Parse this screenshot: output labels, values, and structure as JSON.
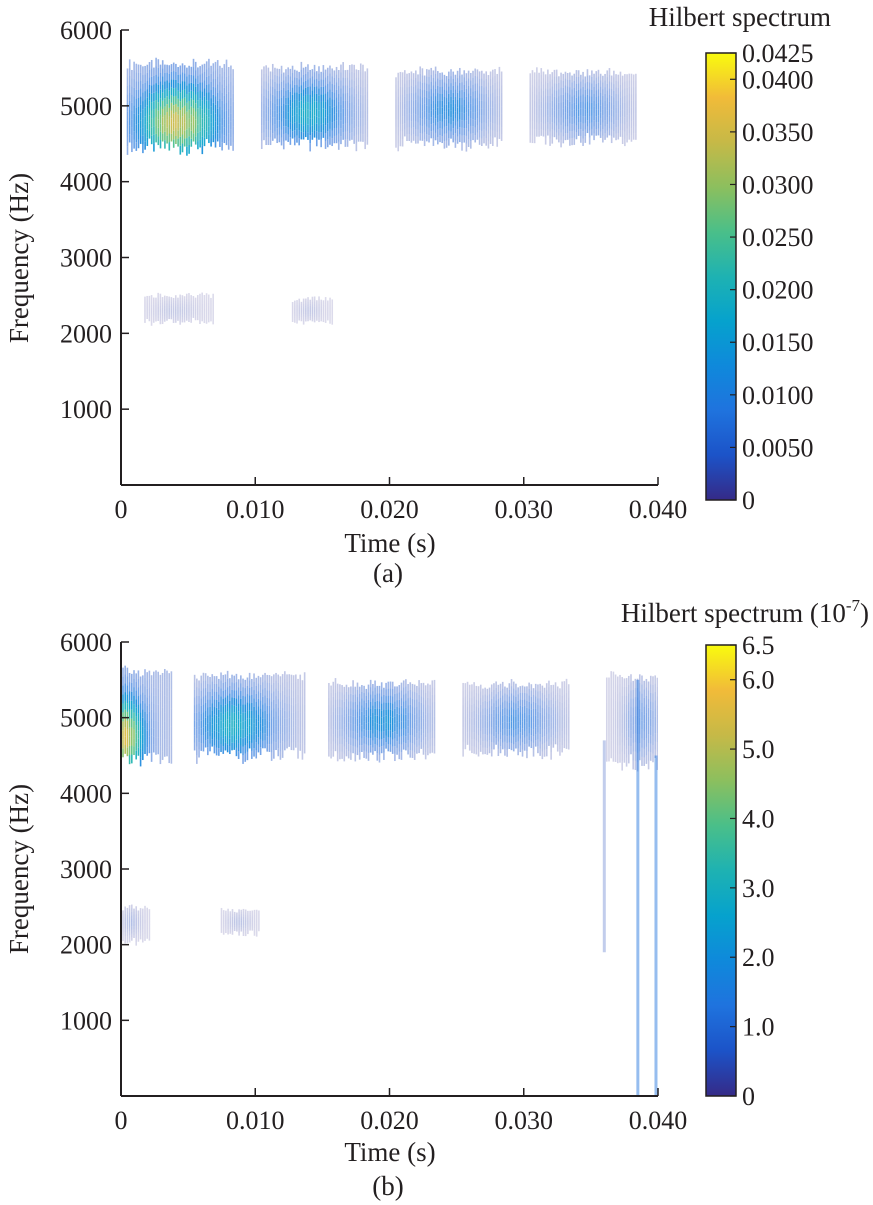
{
  "chart_data": [
    {
      "type": "heatmap",
      "panel_label": "(a)",
      "xlabel": "Time (s)",
      "ylabel": "Frequency (Hz)",
      "xlim": [
        0,
        0.04
      ],
      "ylim": [
        0,
        6000
      ],
      "x_ticks": [
        0,
        0.01,
        0.02,
        0.03,
        0.04
      ],
      "x_tick_labels": [
        "0",
        "0.010",
        "0.020",
        "0.030",
        "0.040"
      ],
      "y_ticks": [
        1000,
        2000,
        3000,
        4000,
        5000,
        6000
      ],
      "y_tick_labels": [
        "1000",
        "2000",
        "3000",
        "4000",
        "5000",
        "6000"
      ],
      "colorbar": {
        "title": "Hilbert spectrum",
        "range": [
          0,
          0.0425
        ],
        "tick_values": [
          0,
          0.005,
          0.01,
          0.015,
          0.02,
          0.025,
          0.03,
          0.035,
          0.04,
          0.0425
        ],
        "tick_labels": [
          "0",
          "0.0050",
          "0.0100",
          "0.0150",
          "0.0200",
          "0.0250",
          "0.0300",
          "0.0350",
          "0.0400",
          "0.0425"
        ]
      },
      "energy_blocks": [
        {
          "t_start": 0.0005,
          "t_end": 0.0085,
          "f_low": 4450,
          "f_high": 5550,
          "peak": 0.037,
          "peak_t": 0.0042,
          "peak_f": 4780
        },
        {
          "t_start": 0.0105,
          "t_end": 0.0185,
          "f_low": 4500,
          "f_high": 5500,
          "peak": 0.019,
          "peak_t": 0.014,
          "peak_f": 4900
        },
        {
          "t_start": 0.0205,
          "t_end": 0.0285,
          "f_low": 4500,
          "f_high": 5450,
          "peak": 0.013,
          "peak_t": 0.0245,
          "peak_f": 4950
        },
        {
          "t_start": 0.0305,
          "t_end": 0.0385,
          "f_low": 4550,
          "f_high": 5450,
          "peak": 0.01,
          "peak_t": 0.0345,
          "peak_f": 4950
        },
        {
          "t_start": 0.0018,
          "t_end": 0.007,
          "f_low": 2150,
          "f_high": 2500,
          "peak": 0.002,
          "peak_t": 0.004,
          "peak_f": 2300
        },
        {
          "t_start": 0.0128,
          "t_end": 0.0158,
          "f_low": 2150,
          "f_high": 2450,
          "peak": 0.002,
          "peak_t": 0.014,
          "peak_f": 2300
        }
      ]
    },
    {
      "type": "heatmap",
      "panel_label": "(b)",
      "xlabel": "Time (s)",
      "ylabel": "Frequency (Hz)",
      "xlim": [
        0,
        0.04
      ],
      "ylim": [
        0,
        6000
      ],
      "x_ticks": [
        0,
        0.01,
        0.02,
        0.03,
        0.04
      ],
      "x_tick_labels": [
        "0",
        "0.010",
        "0.020",
        "0.030",
        "0.040"
      ],
      "y_ticks": [
        1000,
        2000,
        3000,
        4000,
        5000,
        6000
      ],
      "y_tick_labels": [
        "1000",
        "2000",
        "3000",
        "4000",
        "5000",
        "6000"
      ],
      "colorbar": {
        "title": "Hilbert spectrum (10",
        "title_exponent": "-7",
        "title_suffix": ")",
        "range": [
          0,
          6.5
        ],
        "tick_values": [
          0,
          1,
          2,
          3,
          4,
          5,
          6,
          6.5
        ],
        "tick_labels": [
          "0",
          "1.0",
          "2.0",
          "3.0",
          "4.0",
          "5.0",
          "6.0",
          "6.5"
        ]
      },
      "energy_blocks": [
        {
          "t_start": 0.0,
          "t_end": 0.0038,
          "f_low": 4450,
          "f_high": 5600,
          "peak": 5.6,
          "peak_t": 0.0004,
          "peak_f": 4750
        },
        {
          "t_start": 0.0055,
          "t_end": 0.0138,
          "f_low": 4500,
          "f_high": 5550,
          "peak": 3.0,
          "peak_t": 0.0085,
          "peak_f": 4900
        },
        {
          "t_start": 0.0155,
          "t_end": 0.0235,
          "f_low": 4500,
          "f_high": 5450,
          "peak": 2.2,
          "peak_t": 0.0195,
          "peak_f": 4950
        },
        {
          "t_start": 0.0255,
          "t_end": 0.0335,
          "f_low": 4550,
          "f_high": 5450,
          "peak": 1.6,
          "peak_t": 0.0295,
          "peak_f": 4950
        },
        {
          "t_start": 0.0362,
          "t_end": 0.04,
          "f_low": 4400,
          "f_high": 5550,
          "peak": 1.2,
          "peak_t": 0.0388,
          "peak_f": 4950
        },
        {
          "t_start": 0.0,
          "t_end": 0.0022,
          "f_low": 2050,
          "f_high": 2500,
          "peak": 0.5,
          "peak_t": 0.0008,
          "peak_f": 2300
        },
        {
          "t_start": 0.0075,
          "t_end": 0.0103,
          "f_low": 2150,
          "f_high": 2450,
          "peak": 0.4,
          "peak_t": 0.0088,
          "peak_f": 2300
        }
      ],
      "vertical_lines": [
        {
          "t": 0.0385,
          "f_low": 0,
          "f_high": 5500,
          "value": 1.3
        },
        {
          "t": 0.03985,
          "f_low": 0,
          "f_high": 4500,
          "value": 1.3
        },
        {
          "t": 0.036,
          "f_low": 1900,
          "f_high": 4700,
          "value": 0.5
        }
      ]
    }
  ]
}
